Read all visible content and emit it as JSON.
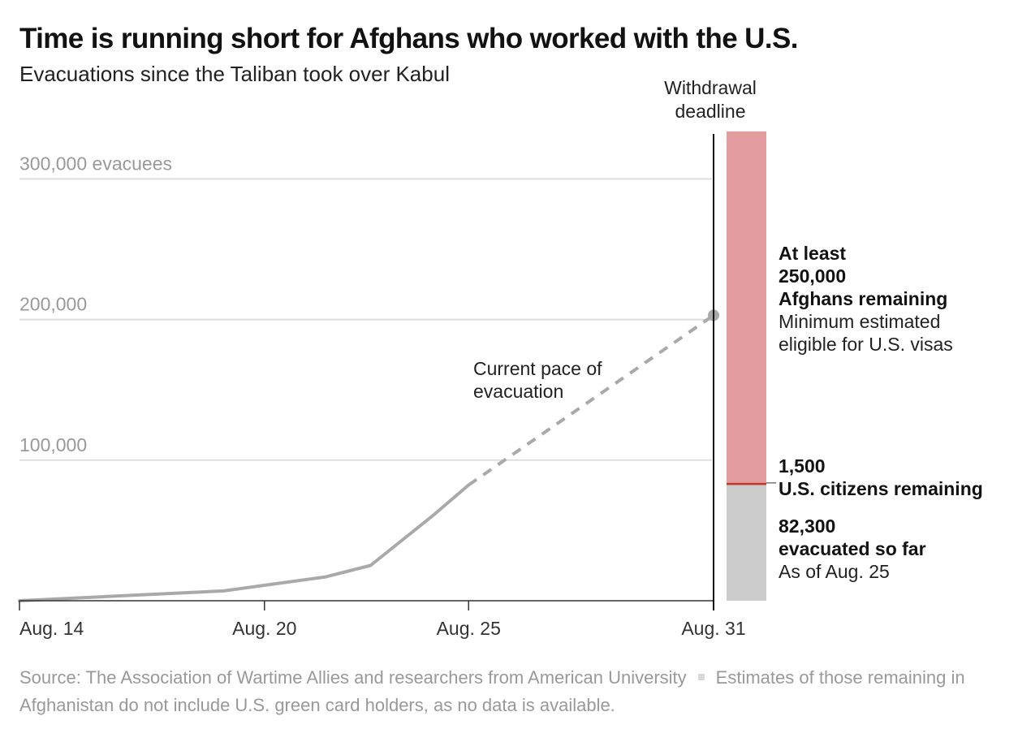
{
  "title": "Time is running short for Afghans who worked with the U.S.",
  "subtitle": "Evacuations since the Taliban took over Kabul",
  "footer": {
    "source": "Source: The Association of Wartime Allies and researchers from American University",
    "note": "Estimates of those remaining in Afghanistan do not include U.S. green card holders, as no data is available."
  },
  "colors": {
    "line": "#a9a9a9",
    "grid": "#dddddd",
    "afghans_bar": "#e39c9f",
    "evacuated_bar": "#cccccc",
    "us_citizens_line": "#c0392b",
    "tick_text": "#999999"
  },
  "chart_data": {
    "type": "line",
    "x_unit": "date",
    "ylim": [
      0,
      300000
    ],
    "y_ticks": [
      {
        "value": 100000,
        "label": "100,000"
      },
      {
        "value": 200000,
        "label": "200,000"
      },
      {
        "value": 300000,
        "label": "300,000 evacuees"
      }
    ],
    "x_ticks": [
      {
        "date": "Aug. 14",
        "day": 14,
        "label": "Aug. 14"
      },
      {
        "date": "Aug. 20",
        "day": 20,
        "label": "Aug. 20"
      },
      {
        "date": "Aug. 25",
        "day": 25,
        "label": "Aug. 25"
      },
      {
        "date": "Aug. 31",
        "day": 31,
        "label": "Aug. 31"
      }
    ],
    "series": [
      {
        "style": "solid",
        "points": [
          {
            "day": 14,
            "value": 0
          },
          {
            "day": 19,
            "value": 7000
          },
          {
            "day": 21.5,
            "value": 17000
          },
          {
            "day": 22.6,
            "value": 25100
          },
          {
            "day": 24.1,
            "value": 60000
          },
          {
            "day": 25,
            "value": 82300
          }
        ]
      },
      {
        "style": "dashed",
        "label_lines": [
          "Current pace of",
          "evacuation"
        ],
        "points": [
          {
            "day": 25,
            "value": 82300
          },
          {
            "day": 31,
            "value": 203000
          }
        ]
      }
    ],
    "deadline": {
      "day": 31,
      "label_lines": [
        "Withdrawal",
        "deadline"
      ]
    },
    "stacked_bar": {
      "day": 31,
      "segments": [
        {
          "key": "evacuated",
          "value": 82300,
          "label_bold": [
            "82,300",
            "evacuated so far"
          ],
          "label_regular": [
            "As of Aug. 25"
          ]
        },
        {
          "key": "us_citizens",
          "value": 1500,
          "label_bold": [
            "1,500",
            "U.S. citizens remaining"
          ],
          "label_regular": []
        },
        {
          "key": "afghans",
          "value": 250000,
          "label_bold": [
            "At least",
            "250,000",
            "Afghans remaining"
          ],
          "label_regular": [
            "Minimum estimated",
            "eligible for U.S. visas"
          ]
        }
      ]
    }
  }
}
